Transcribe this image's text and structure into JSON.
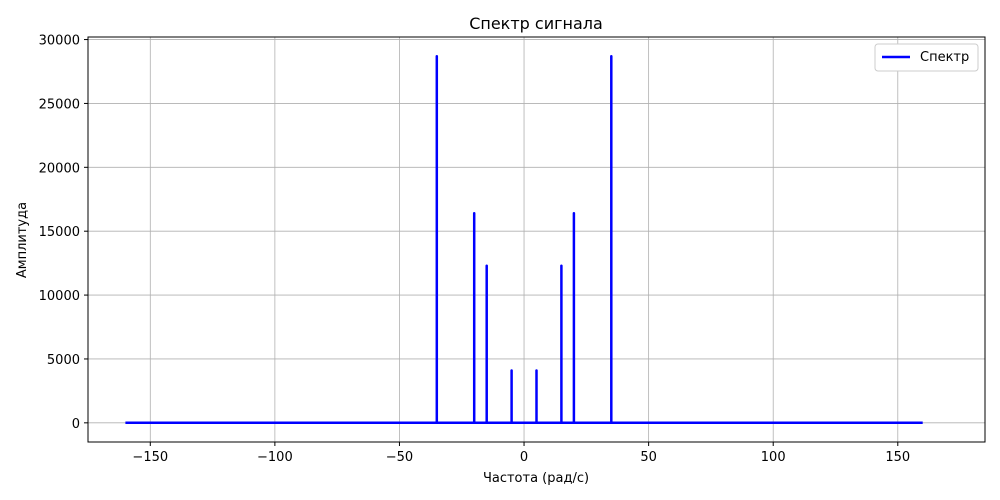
{
  "chart_data": {
    "type": "line",
    "title": "Спектр сигнала",
    "xlabel": "Частота (рад/с)",
    "ylabel": "Амплитуда",
    "xlim": [
      -175,
      185
    ],
    "ylim": [
      -1500,
      30200
    ],
    "xticks": [
      -150,
      -100,
      -50,
      0,
      50,
      100,
      150
    ],
    "xtick_labels": [
      "−150",
      "−100",
      "−50",
      "0",
      "50",
      "100",
      "150"
    ],
    "yticks": [
      0,
      5000,
      10000,
      15000,
      20000,
      25000,
      30000
    ],
    "ytick_labels": [
      "0",
      "5000",
      "10000",
      "15000",
      "20000",
      "25000",
      "30000"
    ],
    "grid": true,
    "legend_position": "top-right",
    "series": [
      {
        "name": "Спектр",
        "color": "#0000ff",
        "x_range": [
          -160,
          160
        ],
        "baseline": 0,
        "peaks": [
          {
            "x": -35,
            "y": 28700
          },
          {
            "x": -20,
            "y": 16400
          },
          {
            "x": -15,
            "y": 12300
          },
          {
            "x": -5,
            "y": 4100
          },
          {
            "x": 5,
            "y": 4100
          },
          {
            "x": 15,
            "y": 12300
          },
          {
            "x": 20,
            "y": 16400
          },
          {
            "x": 35,
            "y": 28700
          }
        ]
      }
    ]
  }
}
